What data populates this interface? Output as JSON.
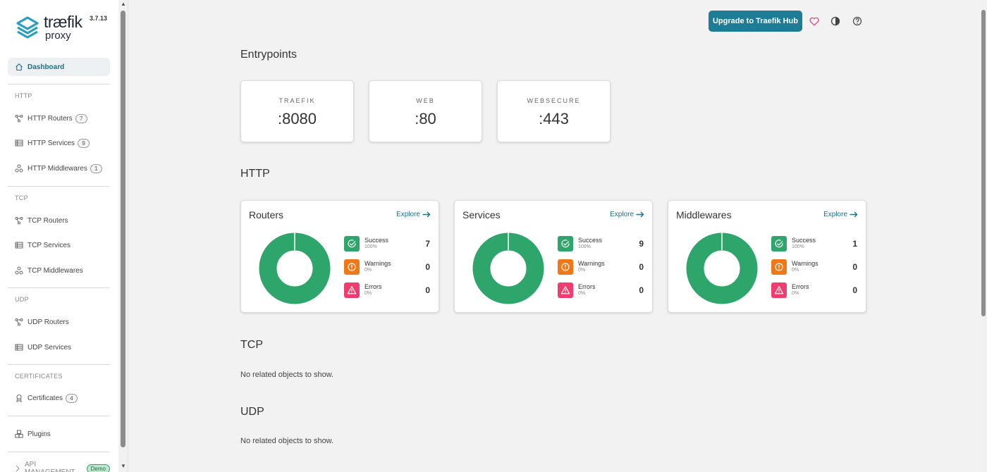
{
  "app": {
    "logo_word": "træfik",
    "logo_sub": "proxy",
    "version": "3.7.13"
  },
  "sidebar": {
    "dashboard": "Dashboard",
    "sections": {
      "http": "HTTP",
      "tcp": "TCP",
      "udp": "UDP",
      "certificates": "CERTIFICATES",
      "api": "API MANAGEMENT"
    },
    "items": {
      "http_routers": {
        "label": "HTTP Routers",
        "count": "7"
      },
      "http_services": {
        "label": "HTTP Services",
        "count": "9"
      },
      "http_middlewares": {
        "label": "HTTP Middlewares",
        "count": "1"
      },
      "tcp_routers": {
        "label": "TCP Routers"
      },
      "tcp_services": {
        "label": "TCP Services"
      },
      "tcp_middlewares": {
        "label": "TCP Middlewares"
      },
      "udp_routers": {
        "label": "UDP Routers"
      },
      "udp_services": {
        "label": "UDP Services"
      },
      "certificates": {
        "label": "Certificates",
        "count": "4"
      },
      "plugins": {
        "label": "Plugins"
      }
    },
    "demo_badge": "Demo"
  },
  "header": {
    "upgrade": "Upgrade to Traefik Hub"
  },
  "entrypoints": {
    "title": "Entrypoints",
    "cards": [
      {
        "name": "TRAEFIK",
        "port": ":8080"
      },
      {
        "name": "WEB",
        "port": ":80"
      },
      {
        "name": "WEBSECURE",
        "port": ":443"
      }
    ]
  },
  "http": {
    "title": "HTTP",
    "explore": "Explore",
    "cards": [
      {
        "title": "Routers",
        "success": "7",
        "warnings": "0",
        "errors": "0",
        "success_pct": "100%",
        "warnings_pct": "0%",
        "errors_pct": "0%"
      },
      {
        "title": "Services",
        "success": "9",
        "warnings": "0",
        "errors": "0",
        "success_pct": "100%",
        "warnings_pct": "0%",
        "errors_pct": "0%"
      },
      {
        "title": "Middlewares",
        "success": "1",
        "warnings": "0",
        "errors": "0",
        "success_pct": "100%",
        "warnings_pct": "0%",
        "errors_pct": "0%"
      }
    ],
    "labels": {
      "success": "Success",
      "warnings": "Warnings",
      "errors": "Errors"
    }
  },
  "tcp": {
    "title": "TCP",
    "empty": "No related objects to show."
  },
  "udp": {
    "title": "UDP",
    "empty": "No related objects to show."
  },
  "colors": {
    "success": "#2ea56b",
    "warning": "#f07818",
    "error": "#f03c6e",
    "accent": "#1d7c96"
  }
}
